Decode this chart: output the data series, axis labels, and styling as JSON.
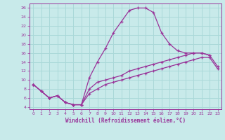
{
  "xlabel": "Windchill (Refroidissement éolien,°C)",
  "bg_color": "#c8eaea",
  "line_color": "#993399",
  "grid_color": "#aad8d8",
  "xlim": [
    -0.5,
    23.5
  ],
  "ylim": [
    3.5,
    27
  ],
  "xticks": [
    0,
    1,
    2,
    3,
    4,
    5,
    6,
    7,
    8,
    9,
    10,
    11,
    12,
    13,
    14,
    15,
    16,
    17,
    18,
    19,
    20,
    21,
    22,
    23
  ],
  "yticks": [
    4,
    6,
    8,
    10,
    12,
    14,
    16,
    18,
    20,
    22,
    24,
    26
  ],
  "line1_x": [
    0,
    1,
    2,
    3,
    4,
    5,
    6,
    7,
    8,
    9,
    10,
    11,
    12,
    13,
    14,
    15,
    16,
    17,
    18,
    19,
    20,
    21,
    22
  ],
  "line1_y": [
    9,
    7.5,
    6,
    6.5,
    5,
    4.5,
    4.5,
    10.5,
    14,
    17,
    20.5,
    23,
    25.5,
    26,
    26,
    25,
    20.5,
    18,
    16.5,
    16,
    16,
    16,
    15.5
  ],
  "line2_x": [
    0,
    1,
    2,
    3,
    4,
    5,
    6,
    7,
    8,
    9,
    10,
    11,
    12,
    13,
    14,
    15,
    16,
    17,
    18,
    19,
    20,
    21,
    22,
    23
  ],
  "line2_y": [
    9,
    7.5,
    6,
    6.5,
    5,
    4.5,
    4.5,
    8,
    9.5,
    10,
    10.5,
    11,
    12,
    12.5,
    13,
    13.5,
    14,
    14.5,
    15,
    15.5,
    16,
    16,
    15.5,
    13
  ],
  "line3_x": [
    0,
    1,
    2,
    3,
    4,
    5,
    6,
    7,
    8,
    9,
    10,
    11,
    12,
    13,
    14,
    15,
    16,
    17,
    18,
    19,
    20,
    21,
    22,
    23
  ],
  "line3_y": [
    9,
    7.5,
    6,
    6.5,
    5,
    4.5,
    4.5,
    7,
    8,
    9,
    9.5,
    10,
    10.5,
    11,
    11.5,
    12,
    12.5,
    13,
    13.5,
    14,
    14.5,
    15,
    15,
    12.5
  ]
}
